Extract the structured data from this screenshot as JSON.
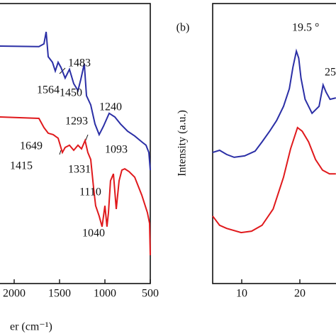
{
  "chart_data": [
    {
      "type": "line",
      "x_label": "er (cm⁻¹)",
      "xlim": [
        2500,
        500
      ],
      "xticks": [
        2000,
        1500,
        1000,
        500
      ],
      "ylim": [
        0,
        100
      ],
      "series": [
        {
          "color": "#2b2fa6",
          "x": [
            2156,
            1727,
            1672,
            1648,
            1625,
            1578,
            1547,
            1516,
            1484,
            1438,
            1391,
            1344,
            1297,
            1266,
            1227,
            1203,
            1156,
            1109,
            1063,
            1016,
            953,
            891,
            828,
            750,
            672,
            594,
            547,
            516,
            500
          ],
          "values": [
            84.8,
            84.6,
            85.6,
            89.9,
            81.0,
            79.0,
            75.9,
            79.0,
            77.2,
            73.4,
            76.5,
            71.4,
            68.9,
            72.9,
            78.5,
            67.1,
            63.8,
            57.0,
            53.2,
            56.2,
            60.8,
            59.5,
            57.0,
            54.4,
            52.7,
            50.6,
            49.4,
            46.8,
            40.5
          ]
        },
        {
          "color": "#e0191c",
          "x": [
            2156,
            1727,
            1672,
            1625,
            1570,
            1516,
            1469,
            1438,
            1391,
            1344,
            1297,
            1258,
            1219,
            1188,
            1156,
            1125,
            1102,
            1063,
            1031,
            1000,
            977,
            961,
            938,
            906,
            875,
            844,
            813,
            781,
            734,
            672,
            594,
            531,
            508,
            500
          ],
          "values": [
            59.5,
            59.0,
            55.7,
            53.7,
            53.2,
            51.9,
            46.8,
            48.6,
            49.4,
            47.6,
            49.4,
            48.1,
            51.1,
            46.8,
            44.3,
            34.2,
            27.8,
            24.1,
            20.3,
            27.8,
            20.3,
            25.3,
            36.7,
            39.2,
            26.6,
            36.7,
            40.5,
            41.0,
            40.0,
            38.0,
            31.6,
            25.3,
            21.5,
            10.1
          ]
        }
      ],
      "annotations": [
        "1564",
        "1483",
        "1450",
        "1293",
        "1240",
        "1093",
        "1649",
        "1415",
        "1331",
        "1110",
        "1040"
      ]
    },
    {
      "type": "line",
      "panel_label": "(b)",
      "y_label": "Intensity (a.u.)",
      "xlim": [
        5,
        30
      ],
      "xticks": [
        10,
        20
      ],
      "ylim": [
        0,
        100
      ],
      "series": [
        {
          "color": "#2b2fa6",
          "x": [
            5.0,
            6.2,
            7.4,
            8.7,
            10.5,
            12.3,
            13.5,
            14.8,
            16.0,
            17.2,
            18.2,
            18.8,
            19.4,
            19.8,
            20.2,
            20.9,
            22.1,
            23.3,
            24.0,
            24.5,
            25.2,
            26.2
          ],
          "values": [
            46.8,
            47.6,
            46.1,
            45.1,
            45.6,
            47.3,
            50.6,
            54.4,
            58.2,
            63.3,
            69.6,
            77.2,
            83.0,
            80.5,
            73.4,
            65.8,
            60.8,
            63.3,
            70.9,
            68.4,
            65.8,
            66.3
          ]
        },
        {
          "color": "#e0191c",
          "x": [
            5.0,
            6.2,
            7.4,
            9.9,
            11.7,
            13.5,
            15.4,
            17.2,
            18.4,
            19.6,
            20.4,
            21.5,
            22.7,
            23.9,
            25.1,
            26.2
          ],
          "values": [
            24.1,
            20.8,
            19.7,
            18.2,
            18.7,
            20.8,
            26.6,
            38.0,
            48.1,
            55.7,
            54.4,
            50.6,
            44.3,
            40.5,
            39.2,
            39.2
          ]
        }
      ],
      "annotations": [
        "19.5 °",
        "25"
      ]
    }
  ]
}
